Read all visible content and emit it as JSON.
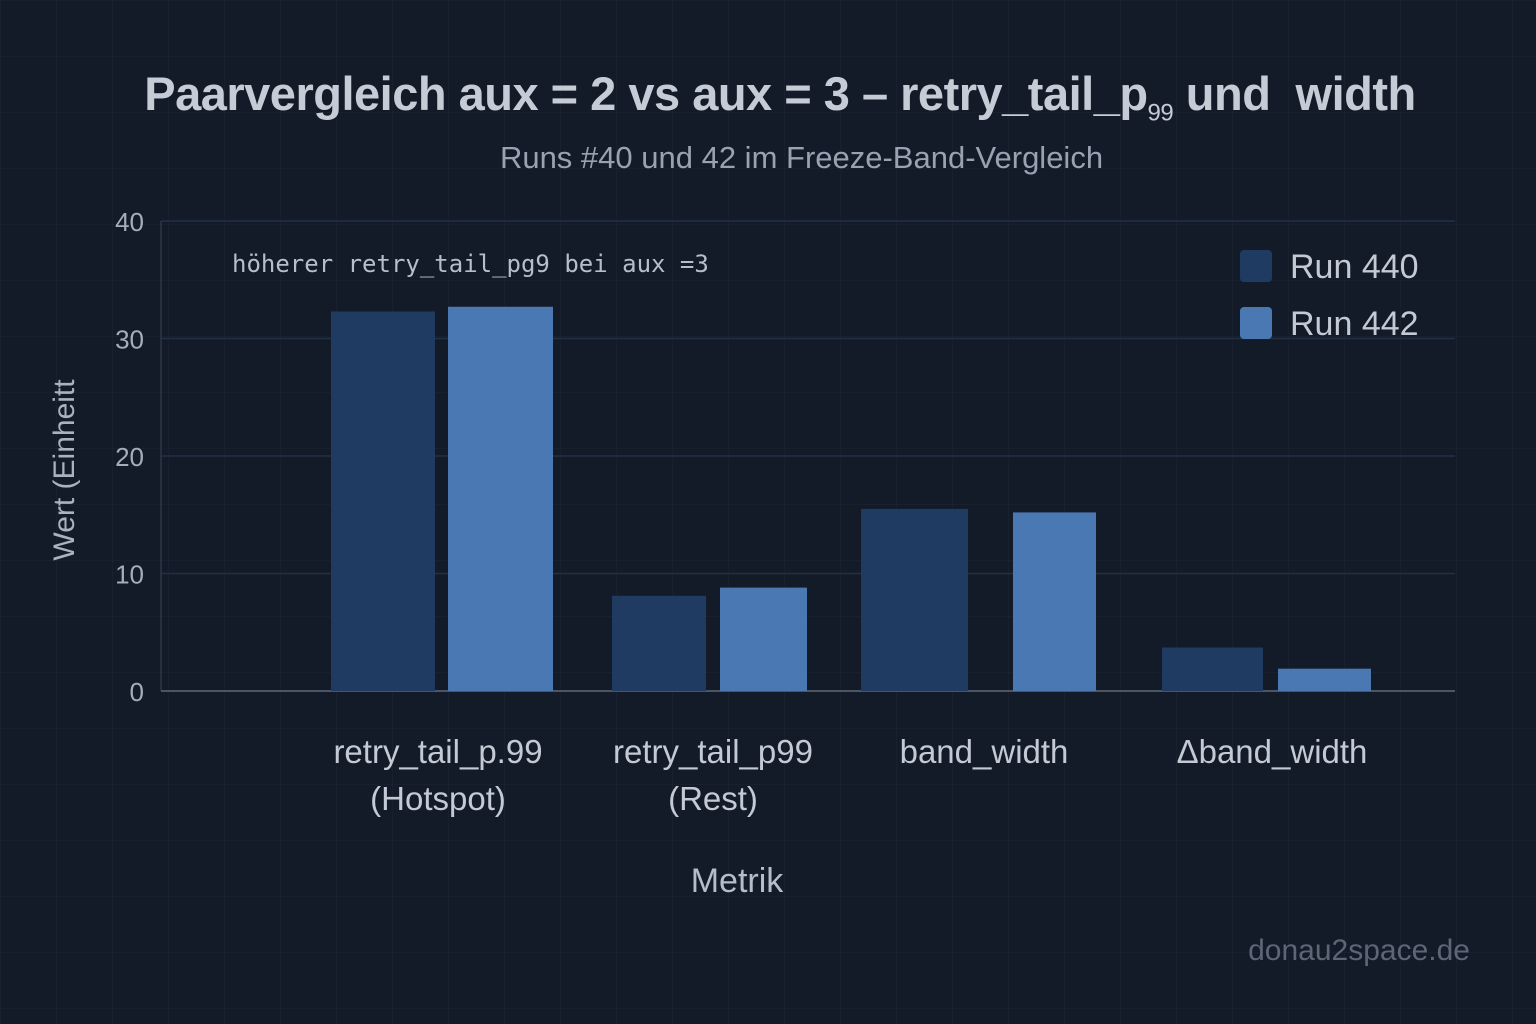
{
  "chart_data": {
    "type": "bar",
    "title": "Paarvergleich aux = 2 vs aux = 3 – retry_tail_p",
    "title_subscript": "99",
    "title_suffix": " und  width",
    "subtitle": "Runs #40 und 42 im Freeze-Band-Vergleich",
    "xlabel": "Metrik",
    "ylabel": "Wert (Einheitt",
    "ylim": [
      0,
      40
    ],
    "yticks": [
      0,
      10,
      20,
      30,
      40
    ],
    "grid": true,
    "legend_position": "top-right",
    "annotation": "höherer retry_tail_pg9 bei aux =3",
    "categories": [
      [
        "retry_tail_p.99",
        "(Hotspot)"
      ],
      [
        "retry_tail_p99",
        "(Rest)"
      ],
      [
        "band_width"
      ],
      [
        "Δband_width"
      ]
    ],
    "series": [
      {
        "name": "Run 440",
        "color": "#1f3b62",
        "values": [
          32.3,
          8.1,
          15.5,
          3.7
        ]
      },
      {
        "name": "Run 442",
        "color": "#4a78b2",
        "values": [
          32.7,
          8.8,
          15.2,
          1.9
        ]
      }
    ]
  },
  "watermark": "donau2space.de"
}
